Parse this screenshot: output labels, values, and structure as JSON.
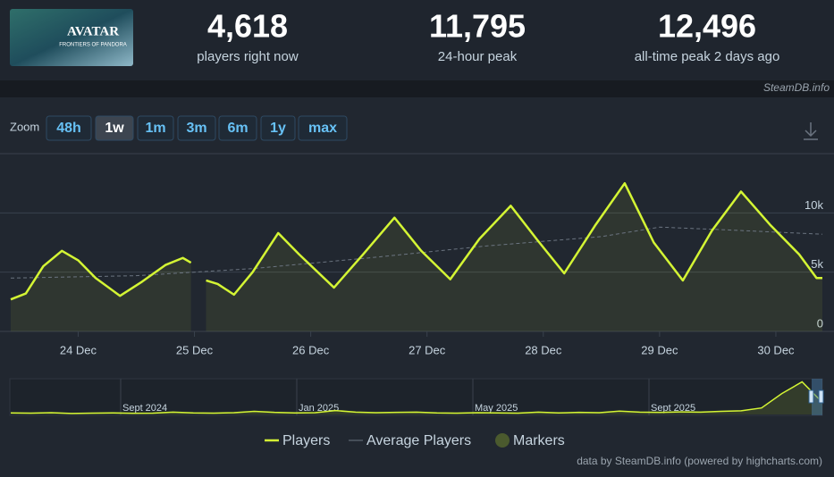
{
  "header": {
    "game": {
      "title": "AVATAR",
      "subtitle": "FRONTIERS OF PANDORA"
    },
    "stats": [
      {
        "value": "4,618",
        "label": "players right now"
      },
      {
        "value": "11,795",
        "label": "24-hour peak"
      },
      {
        "value": "12,496",
        "label": "all-time peak 2 days ago"
      }
    ],
    "source": "SteamDB.info"
  },
  "zoom": {
    "label": "Zoom",
    "options": [
      "48h",
      "1w",
      "1m",
      "3m",
      "6m",
      "1y",
      "max"
    ],
    "active": "1w"
  },
  "chart_data": {
    "type": "line",
    "xlim": [
      23.42,
      30.4
    ],
    "xticks": [
      {
        "value": 24,
        "label": "24 Dec"
      },
      {
        "value": 25,
        "label": "25 Dec"
      },
      {
        "value": 26,
        "label": "26 Dec"
      },
      {
        "value": 27,
        "label": "27 Dec"
      },
      {
        "value": 28,
        "label": "28 Dec"
      },
      {
        "value": 29,
        "label": "29 Dec"
      },
      {
        "value": 30,
        "label": "30 Dec"
      }
    ],
    "ylim": [
      0,
      15000
    ],
    "yticks": [
      0,
      {
        "value": 5000,
        "label": "5k"
      },
      {
        "value": 10000,
        "label": "10k"
      }
    ],
    "grid": true,
    "series": [
      {
        "name": "Players",
        "color": "#d4f534",
        "x": [
          23.42,
          23.55,
          23.7,
          23.86,
          24.0,
          24.15,
          24.36,
          24.55,
          24.75,
          24.9,
          24.97,
          25.02,
          25.1,
          25.2,
          25.34,
          25.5,
          25.72,
          25.9,
          26.2,
          26.45,
          26.72,
          26.95,
          27.2,
          27.45,
          27.72,
          27.95,
          28.18,
          28.45,
          28.7,
          28.95,
          29.2,
          29.45,
          29.7,
          29.95,
          30.2,
          30.35,
          30.4
        ],
        "values": [
          2700,
          3200,
          5500,
          6800,
          6000,
          4500,
          3000,
          4200,
          5600,
          6200,
          5800,
          null,
          4300,
          4000,
          3100,
          5000,
          8300,
          6500,
          3700,
          6500,
          9600,
          6800,
          4400,
          7800,
          10600,
          7700,
          4900,
          9000,
          12500,
          7500,
          4300,
          8500,
          11800,
          9000,
          6500,
          4500,
          4500
        ]
      },
      {
        "name": "Average Players",
        "color": "#6b7480",
        "x": [
          23.42,
          24.5,
          25.5,
          26.5,
          27.5,
          28.5,
          29.0,
          29.5,
          30.4
        ],
        "values": [
          4500,
          4700,
          5300,
          6200,
          7200,
          8000,
          8800,
          8600,
          8200
        ]
      },
      {
        "name": "Markers",
        "color": "#4b5a2e",
        "values": []
      }
    ],
    "navigator": {
      "labels": [
        "Sept 2024",
        "Jan 2025",
        "May 2025",
        "Sept 2025"
      ],
      "ylim": [
        0,
        13000
      ],
      "values": [
        600,
        500,
        700,
        400,
        500,
        600,
        450,
        500,
        900,
        600,
        500,
        700,
        1200,
        800,
        600,
        700,
        1500,
        900,
        700,
        800,
        900,
        600,
        500,
        700,
        600,
        500,
        900,
        600,
        800,
        700,
        1300,
        900,
        800,
        1000,
        900,
        1200,
        1400,
        2500,
        8000,
        12496,
        4618
      ]
    },
    "credits": "data by SteamDB.info (powered by highcharts.com)"
  }
}
